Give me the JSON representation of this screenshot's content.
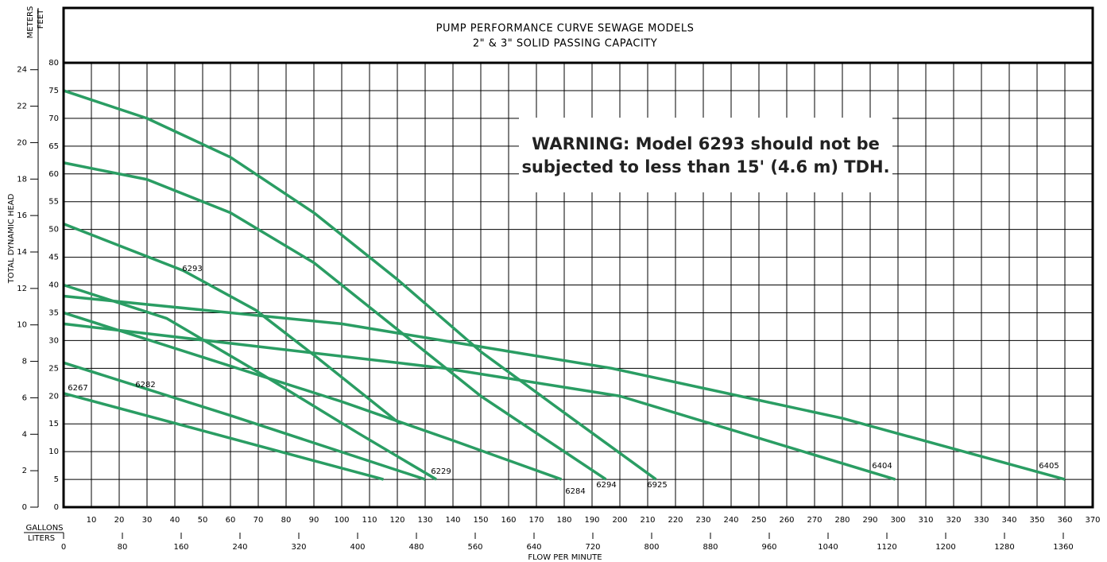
{
  "chart_data": {
    "type": "line",
    "title": "PUMP PERFORMANCE CURVE SEWAGE MODELS",
    "subtitle": "2\" & 3\" SOLID PASSING CAPACITY",
    "y_label": "TOTAL DYNAMIC HEAD",
    "y_unit": "FEET",
    "y2_unit": "METERS",
    "x_label": "FLOW PER MINUTE",
    "x_unit": "GALLONS",
    "x2_unit": "LITERS",
    "annotation": [
      "WARNING: Model 6293 should not be",
      "subjected to less than 15' (4.6 m) TDH."
    ],
    "xlim": [
      0,
      370
    ],
    "xticks": [
      10,
      20,
      30,
      40,
      50,
      60,
      70,
      80,
      90,
      100,
      110,
      120,
      130,
      140,
      150,
      160,
      170,
      180,
      190,
      200,
      210,
      220,
      230,
      240,
      250,
      260,
      270,
      280,
      290,
      300,
      310,
      320,
      330,
      340,
      350,
      360,
      370
    ],
    "x2lim": [
      0,
      1400
    ],
    "x2ticks": [
      0,
      80,
      160,
      240,
      320,
      400,
      480,
      560,
      640,
      720,
      800,
      880,
      960,
      1040,
      1120,
      1200,
      1280,
      1360
    ],
    "ylim": [
      0,
      80
    ],
    "yticks": [
      0,
      5,
      10,
      15,
      20,
      25,
      30,
      35,
      40,
      45,
      50,
      55,
      60,
      65,
      70,
      75,
      80
    ],
    "y2lim": [
      0,
      24.38
    ],
    "y2ticks": [
      0,
      2,
      4,
      6,
      8,
      10,
      12,
      14,
      16,
      18,
      20,
      22,
      24
    ],
    "grid": true,
    "series": [
      {
        "name": "6267",
        "color": "#2a9d63",
        "x": [
          0,
          115
        ],
        "values": [
          20.5,
          5
        ]
      },
      {
        "name": "6282",
        "color": "#2a9d63",
        "x": [
          0,
          60,
          130
        ],
        "values": [
          26,
          16.5,
          5
        ]
      },
      {
        "name": "6293",
        "color": "#2a9d63",
        "x": [
          0,
          43,
          69,
          91,
          121
        ],
        "values": [
          51,
          42.6,
          35.5,
          27,
          15
        ]
      },
      {
        "name": "6229",
        "color": "#2a9d63",
        "x": [
          0,
          37,
          71,
          106,
          134
        ],
        "values": [
          40,
          34,
          24,
          13.3,
          5
        ]
      },
      {
        "name": "6284",
        "color": "#2a9d63",
        "x": [
          0,
          50,
          100,
          140,
          179
        ],
        "values": [
          35,
          27,
          19,
          12,
          5
        ]
      },
      {
        "name": "6294",
        "color": "#2a9d63",
        "x": [
          0,
          30,
          60,
          90,
          120,
          150,
          195
        ],
        "values": [
          62,
          59,
          53,
          44,
          32,
          20,
          5
        ]
      },
      {
        "name": "6925",
        "color": "#2a9d63",
        "x": [
          0,
          30,
          60,
          90,
          120,
          150,
          180,
          213
        ],
        "values": [
          75,
          70,
          63,
          53,
          41,
          28,
          17,
          5
        ]
      },
      {
        "name": "6404",
        "color": "#2a9d63",
        "x": [
          0,
          137,
          200,
          299
        ],
        "values": [
          33,
          25,
          20,
          5
        ]
      },
      {
        "name": "6405",
        "color": "#2a9d63",
        "x": [
          0,
          100,
          197,
          280,
          360
        ],
        "values": [
          38,
          33,
          25,
          16,
          5
        ]
      }
    ]
  }
}
